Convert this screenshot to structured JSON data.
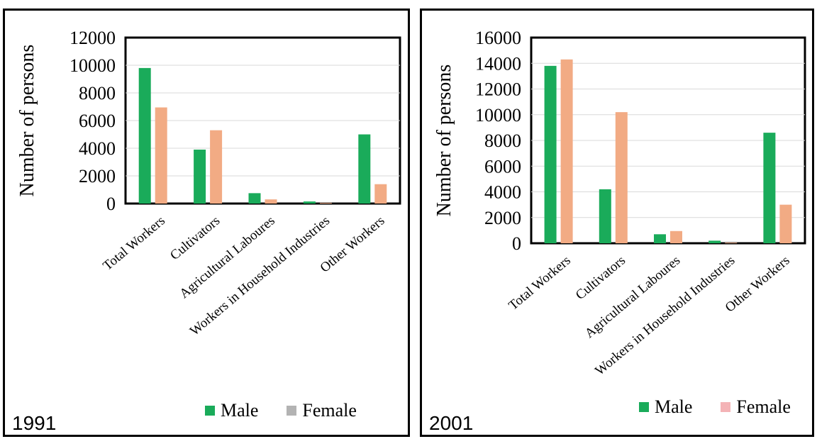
{
  "colors": {
    "male": "#1aab5a",
    "female": "#f2ab84",
    "gridline": "#d9d9d9"
  },
  "chart_data": [
    {
      "type": "bar",
      "year_label": "1991",
      "ylabel": "Number of persons",
      "ylim": [
        0,
        12000
      ],
      "yticks": [
        0,
        2000,
        4000,
        6000,
        8000,
        10000,
        12000
      ],
      "categories": [
        "Total Workers",
        "Cultivators",
        "Agricultural Laboures",
        "Workers in Household Industries",
        "Other Workers"
      ],
      "series": [
        {
          "name": "Male",
          "values": [
            9800,
            3900,
            750,
            150,
            5000
          ]
        },
        {
          "name": "Female",
          "values": [
            6950,
            5300,
            300,
            50,
            1400
          ]
        }
      ],
      "legend": {
        "position": "bottom-right",
        "male_label": "Male",
        "female_label": "Female",
        "female_swatch_color": "#b3b3b3"
      },
      "grid": true
    },
    {
      "type": "bar",
      "year_label": "2001",
      "ylabel": "Number of persons",
      "ylim": [
        0,
        16000
      ],
      "yticks": [
        0,
        2000,
        4000,
        6000,
        8000,
        10000,
        12000,
        14000,
        16000
      ],
      "categories": [
        "Total Workers",
        "Cultivators",
        "Agricultural Laboures",
        "Workers in Household Industries",
        "Other Workers"
      ],
      "series": [
        {
          "name": "Male",
          "values": [
            13800,
            4200,
            700,
            200,
            8600
          ]
        },
        {
          "name": "Female",
          "values": [
            14300,
            10200,
            950,
            50,
            3000
          ]
        }
      ],
      "legend": {
        "position": "bottom-right",
        "male_label": "Male",
        "female_label": "Female",
        "female_swatch_color": "#f4b3b6"
      },
      "grid": true
    }
  ]
}
